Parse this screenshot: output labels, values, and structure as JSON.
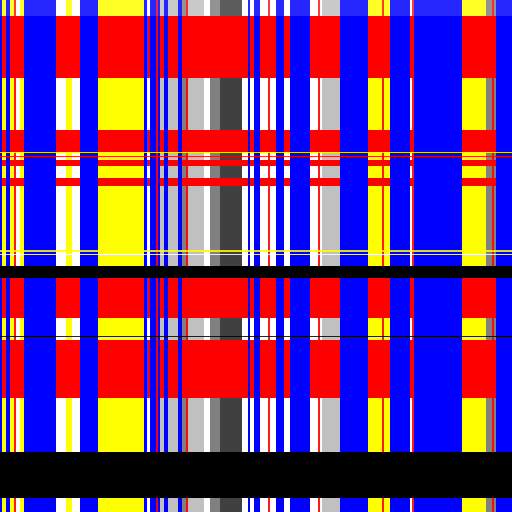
{
  "palette": {
    "blue": "#0000ff",
    "red": "#ff0000",
    "yellow": "#ffff00",
    "white": "#ffffff",
    "black": "#000000",
    "dark_gray": "#404040",
    "mid_gray": "#808080",
    "light_gray": "#c0c0c0"
  },
  "pattern": {
    "description_style": "tartan-like plaid of vertical and horizontal stripes",
    "dominant_colors": [
      "blue",
      "red",
      "yellow",
      "white",
      "black",
      "gray"
    ]
  }
}
